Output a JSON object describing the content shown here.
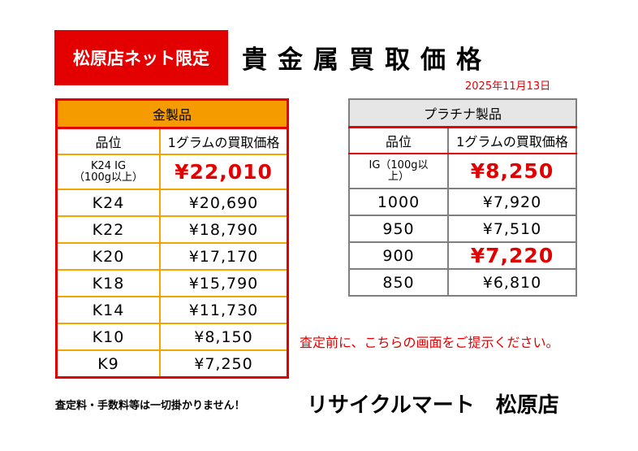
{
  "header": {
    "badge": "松原店ネット限定",
    "title": "貴金属買取価格",
    "date": "2025年11月13日"
  },
  "gold": {
    "title": "金製品",
    "col_grade": "品位",
    "col_price": "1グラムの買取価格",
    "rows": [
      {
        "grade": "K24 IG\n（100g以上）",
        "price": "¥22,010"
      },
      {
        "grade": "K24",
        "price": "¥20,690"
      },
      {
        "grade": "K22",
        "price": "¥18,790"
      },
      {
        "grade": "K20",
        "price": "¥17,170"
      },
      {
        "grade": "K18",
        "price": "¥15,790"
      },
      {
        "grade": "K14",
        "price": "¥11,730"
      },
      {
        "grade": "K10",
        "price": "¥8,150"
      },
      {
        "grade": "K9",
        "price": "¥7,250"
      }
    ]
  },
  "platinum": {
    "title": "プラチナ製品",
    "col_grade": "品位",
    "col_price": "1グラムの買取価格",
    "rows": [
      {
        "grade": "IG（100g以\n上）",
        "price": "¥8,250"
      },
      {
        "grade": "1000",
        "price": "¥7,920"
      },
      {
        "grade": "950",
        "price": "¥7,510"
      },
      {
        "grade": "900",
        "price": "¥7,220"
      },
      {
        "grade": "850",
        "price": "¥6,810"
      }
    ]
  },
  "notice": "査定前に、こちらの画面をご提示ください。",
  "footer_note": "査定料・手数料等は一切掛かりません！",
  "store_name": "リサイクルマート　松原店",
  "colors": {
    "accent_red": "#e30000",
    "gold_header": "#f59b00",
    "gold_border": "#f0a500",
    "platinum_header": "#e6e6e6",
    "platinum_border": "#7f7f7f"
  }
}
